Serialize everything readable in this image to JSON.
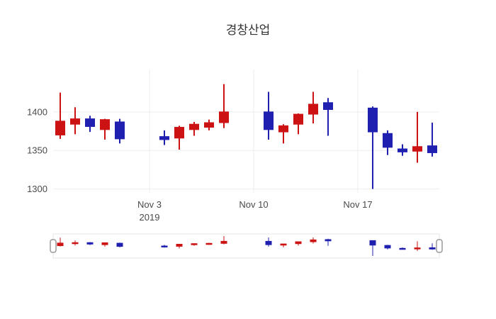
{
  "chart_data": {
    "type": "candlestick",
    "title": "경창산업",
    "increasing_color": "#cc1212",
    "decreasing_color": "#2020b0",
    "legend": "none",
    "grid": true,
    "rangeslider": true,
    "y_axis": {
      "ticks": [
        1400,
        1350,
        1300
      ],
      "range": [
        1295,
        1455
      ]
    },
    "x_axis": {
      "ticks": [
        {
          "label": "Nov 3",
          "sublabel": "2019",
          "date": "2019-11-03"
        },
        {
          "label": "Nov 10",
          "sublabel": "",
          "date": "2019-11-10"
        },
        {
          "label": "Nov 17",
          "sublabel": "",
          "date": "2019-11-17"
        }
      ]
    },
    "ohlc": [
      {
        "date": "2019-10-28",
        "open": 1370,
        "high": 1425,
        "low": 1365,
        "close": 1388
      },
      {
        "date": "2019-10-29",
        "open": 1384,
        "high": 1406,
        "low": 1371,
        "close": 1391
      },
      {
        "date": "2019-10-30",
        "open": 1391,
        "high": 1395,
        "low": 1374,
        "close": 1381
      },
      {
        "date": "2019-10-31",
        "open": 1377,
        "high": 1391,
        "low": 1364,
        "close": 1390
      },
      {
        "date": "2019-11-01",
        "open": 1387,
        "high": 1391,
        "low": 1359,
        "close": 1365
      },
      {
        "date": "2019-11-04",
        "open": 1368,
        "high": 1376,
        "low": 1357,
        "close": 1364
      },
      {
        "date": "2019-11-05",
        "open": 1366,
        "high": 1382,
        "low": 1351,
        "close": 1380
      },
      {
        "date": "2019-11-06",
        "open": 1377,
        "high": 1387,
        "low": 1369,
        "close": 1384
      },
      {
        "date": "2019-11-07",
        "open": 1380,
        "high": 1390,
        "low": 1376,
        "close": 1386
      },
      {
        "date": "2019-11-08",
        "open": 1386,
        "high": 1436,
        "low": 1379,
        "close": 1400
      },
      {
        "date": "2019-11-11",
        "open": 1400,
        "high": 1426,
        "low": 1364,
        "close": 1377
      },
      {
        "date": "2019-11-12",
        "open": 1374,
        "high": 1384,
        "low": 1359,
        "close": 1382
      },
      {
        "date": "2019-11-13",
        "open": 1384,
        "high": 1398,
        "low": 1371,
        "close": 1397
      },
      {
        "date": "2019-11-14",
        "open": 1397,
        "high": 1426,
        "low": 1385,
        "close": 1410
      },
      {
        "date": "2019-11-15",
        "open": 1412,
        "high": 1418,
        "low": 1369,
        "close": 1403
      },
      {
        "date": "2019-11-18",
        "open": 1405,
        "high": 1407,
        "low": 1300,
        "close": 1374
      },
      {
        "date": "2019-11-19",
        "open": 1372,
        "high": 1376,
        "low": 1344,
        "close": 1354
      },
      {
        "date": "2019-11-20",
        "open": 1352,
        "high": 1358,
        "low": 1343,
        "close": 1348
      },
      {
        "date": "2019-11-21",
        "open": 1349,
        "high": 1400,
        "low": 1334,
        "close": 1355
      },
      {
        "date": "2019-11-22",
        "open": 1356,
        "high": 1386,
        "low": 1342,
        "close": 1347
      }
    ]
  }
}
